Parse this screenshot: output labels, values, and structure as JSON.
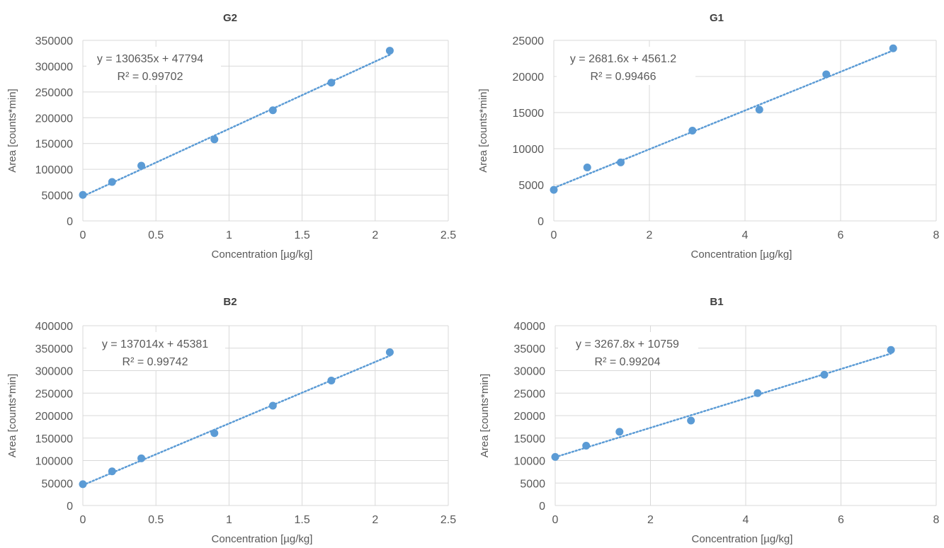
{
  "style": {
    "marker_color": "#5b9bd5",
    "trend_color": "#5b9bd5",
    "grid_color": "#d9d9d9",
    "text_color": "#595959",
    "title_color": "#404040"
  },
  "chart_data": [
    {
      "type": "scatter",
      "title": "G2",
      "xlabel": "Concentration [µg/kg]",
      "ylabel": "Area [counts*min]",
      "xlim": [
        0,
        2.5
      ],
      "ylim": [
        0,
        350000
      ],
      "x_ticks": [
        "0",
        "0.5",
        "1",
        "1.5",
        "2",
        "2.5"
      ],
      "y_ticks": [
        "0",
        "50000",
        "100000",
        "150000",
        "200000",
        "250000",
        "300000",
        "350000"
      ],
      "grid": true,
      "points": [
        [
          0,
          50500
        ],
        [
          0.2,
          75500
        ],
        [
          0.4,
          107000
        ],
        [
          0.9,
          158000
        ],
        [
          1.3,
          214500
        ],
        [
          1.7,
          268000
        ],
        [
          2.1,
          330000
        ]
      ],
      "trendline": {
        "slope": 130635,
        "intercept": 47794,
        "style": "dotted"
      },
      "equation": "y = 130635x + 47794",
      "r2": "R² = 0.99702"
    },
    {
      "type": "scatter",
      "title": "G1",
      "xlabel": "Concentration [µg/kg]",
      "ylabel": "Area [counts*min]",
      "xlim": [
        0,
        8
      ],
      "ylim": [
        0,
        25000
      ],
      "x_ticks": [
        "0",
        "2",
        "4",
        "6",
        "8"
      ],
      "y_ticks": [
        "0",
        "5000",
        "10000",
        "15000",
        "20000",
        "25000"
      ],
      "grid": true,
      "points": [
        [
          0,
          4300
        ],
        [
          0.7,
          7400
        ],
        [
          1.4,
          8100
        ],
        [
          2.9,
          12500
        ],
        [
          4.3,
          15400
        ],
        [
          5.7,
          20300
        ],
        [
          7.1,
          23900
        ]
      ],
      "trendline": {
        "slope": 2681.6,
        "intercept": 4561.2,
        "style": "dotted"
      },
      "equation": "y = 2681.6x + 4561.2",
      "r2": "R² = 0.99466"
    },
    {
      "type": "scatter",
      "title": "B2",
      "xlabel": "Concentration [µg/kg]",
      "ylabel": "Area [counts*min]",
      "xlim": [
        0,
        2.5
      ],
      "ylim": [
        0,
        400000
      ],
      "x_ticks": [
        "0",
        "0.5",
        "1",
        "1.5",
        "2",
        "2.5"
      ],
      "y_ticks": [
        "0",
        "50000",
        "100000",
        "150000",
        "200000",
        "250000",
        "300000",
        "350000",
        "400000"
      ],
      "grid": true,
      "points": [
        [
          0,
          47500
        ],
        [
          0.2,
          76000
        ],
        [
          0.4,
          105000
        ],
        [
          0.9,
          161000
        ],
        [
          1.3,
          222000
        ],
        [
          1.7,
          278000
        ],
        [
          2.1,
          341000
        ]
      ],
      "trendline": {
        "slope": 137014,
        "intercept": 45381,
        "style": "dotted"
      },
      "equation": "y = 137014x + 45381",
      "r2": "R² = 0.99742"
    },
    {
      "type": "scatter",
      "title": "B1",
      "xlabel": "Concentration [µg/kg]",
      "ylabel": "Area [counts*min]",
      "xlim": [
        0,
        8
      ],
      "ylim": [
        0,
        40000
      ],
      "x_ticks": [
        "0",
        "2",
        "4",
        "6",
        "8"
      ],
      "y_ticks": [
        "0",
        "5000",
        "10000",
        "15000",
        "20000",
        "25000",
        "30000",
        "35000",
        "40000"
      ],
      "grid": true,
      "points": [
        [
          0,
          10800
        ],
        [
          0.65,
          13300
        ],
        [
          1.35,
          16400
        ],
        [
          2.85,
          18900
        ],
        [
          4.25,
          25000
        ],
        [
          5.65,
          29100
        ],
        [
          7.05,
          34600
        ]
      ],
      "trendline": {
        "slope": 3267.8,
        "intercept": 10759,
        "style": "dotted"
      },
      "equation": "y = 3267.8x + 10759",
      "r2": "R² = 0.99204"
    }
  ]
}
